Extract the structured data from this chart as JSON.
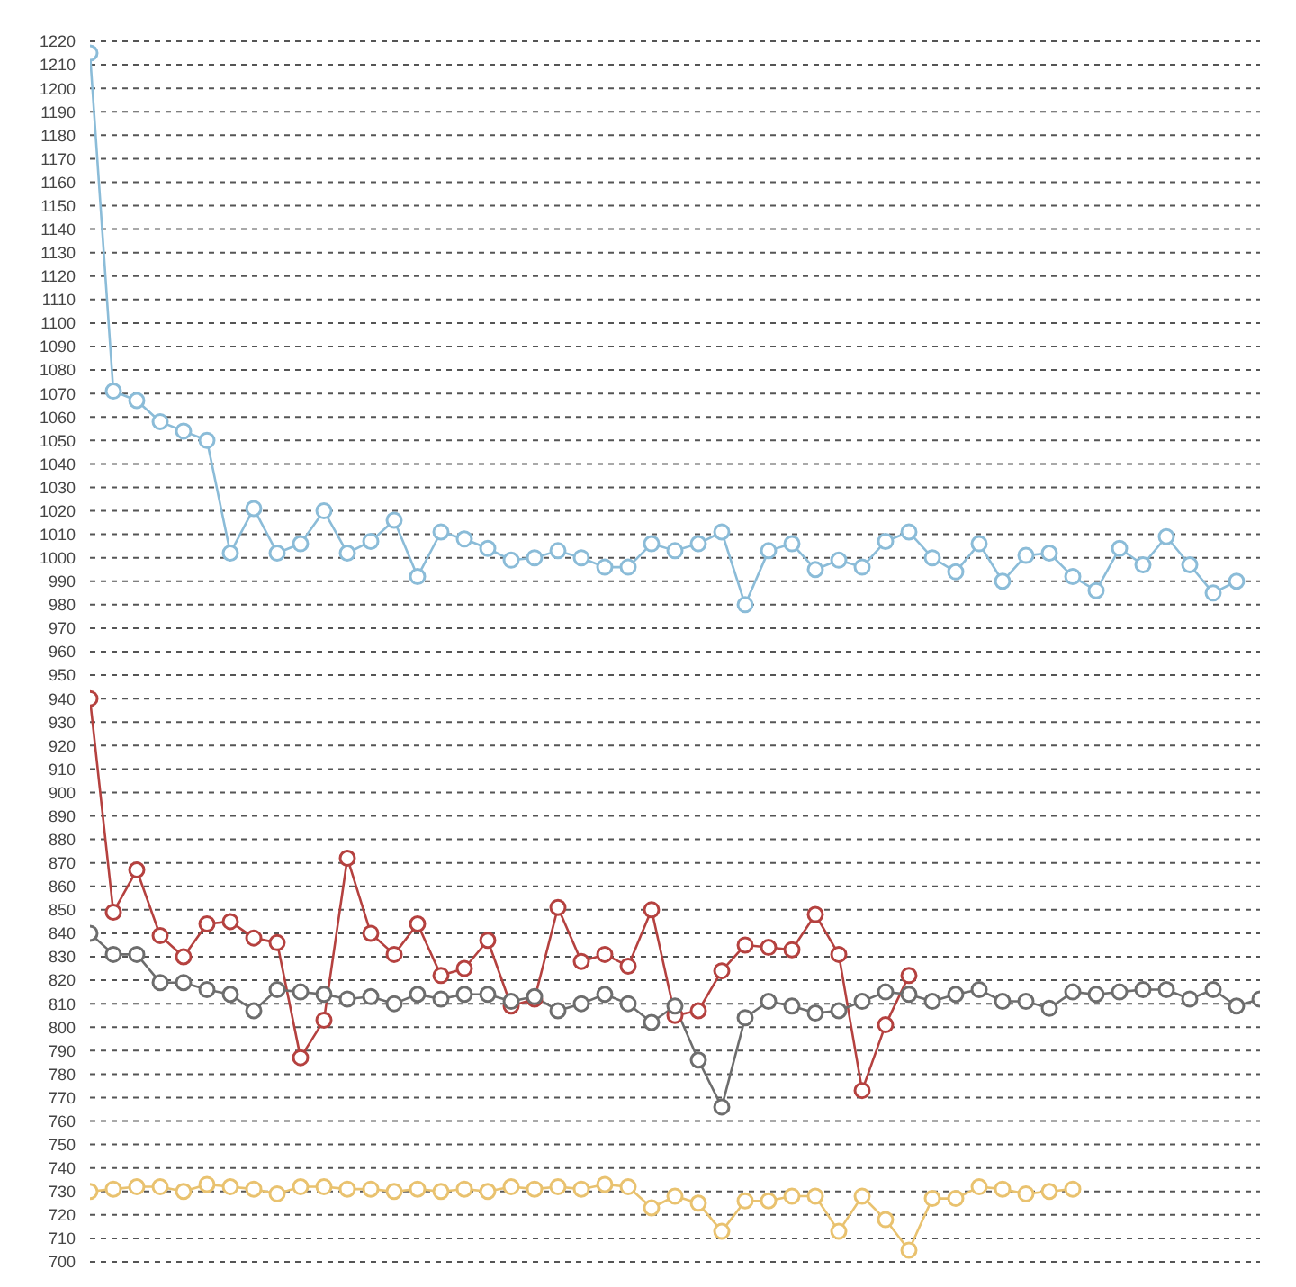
{
  "chart_data": {
    "type": "line",
    "categories": [
      null,
      null,
      null,
      null,
      null,
      null,
      null,
      null,
      null,
      null,
      null,
      null,
      null,
      null,
      null,
      null,
      null,
      null,
      null,
      null,
      null,
      null,
      null,
      null,
      null,
      null,
      null,
      null,
      null,
      null,
      null,
      null,
      null,
      null,
      null,
      null,
      null,
      null,
      null,
      null,
      null,
      null,
      null,
      null,
      null,
      null,
      null,
      null,
      null,
      null,
      null
    ],
    "series": [
      {
        "color": "#8bbcd8",
        "values": [
          1215,
          1071,
          1067,
          1058,
          1054,
          1050,
          1002,
          1021,
          1002,
          1006,
          1020,
          1002,
          1007,
          1016,
          992,
          1011,
          1008,
          1004,
          999,
          1000,
          1003,
          1000,
          996,
          996,
          1006,
          1003,
          1006,
          1011,
          980,
          1003,
          1006,
          995,
          999,
          996,
          1007,
          1011,
          1000,
          994,
          1006,
          990,
          1001,
          1002,
          992,
          986,
          1004,
          997,
          1009,
          997,
          985,
          990,
          null
        ]
      },
      {
        "color": "#b5413f",
        "values": [
          940,
          849,
          867,
          839,
          830,
          844,
          845,
          838,
          836,
          787,
          803,
          872,
          840,
          831,
          844,
          822,
          825,
          837,
          809,
          812,
          851,
          828,
          831,
          826,
          850,
          805,
          807,
          824,
          835,
          834,
          833,
          848,
          831,
          773,
          801,
          822,
          null,
          null,
          null,
          null,
          null,
          null,
          null,
          null,
          null,
          null,
          null,
          null,
          null,
          null,
          null
        ]
      },
      {
        "color": "#6d6d6d",
        "values": [
          840,
          831,
          831,
          819,
          819,
          816,
          814,
          807,
          816,
          815,
          814,
          812,
          813,
          810,
          814,
          812,
          814,
          814,
          811,
          813,
          807,
          810,
          814,
          810,
          802,
          809,
          786,
          766,
          804,
          811,
          809,
          806,
          807,
          811,
          815,
          814,
          811,
          814,
          816,
          811,
          811,
          808,
          815,
          814,
          815,
          816,
          816,
          812,
          816,
          809,
          812
        ]
      },
      {
        "color": "#e9c26f",
        "values": [
          730,
          731,
          732,
          732,
          730,
          733,
          732,
          731,
          729,
          732,
          732,
          731,
          731,
          730,
          731,
          730,
          731,
          730,
          732,
          731,
          732,
          731,
          733,
          732,
          723,
          728,
          725,
          713,
          726,
          726,
          728,
          728,
          713,
          728,
          718,
          705,
          727,
          727,
          732,
          731,
          729,
          730,
          731,
          null,
          null,
          null,
          null,
          null,
          null,
          null,
          null
        ]
      }
    ],
    "ylim": [
      700,
      1220
    ],
    "yticks": [
      700,
      710,
      720,
      730,
      740,
      750,
      760,
      770,
      780,
      790,
      800,
      810,
      820,
      830,
      840,
      850,
      860,
      870,
      880,
      890,
      900,
      910,
      920,
      930,
      940,
      950,
      960,
      970,
      980,
      990,
      1000,
      1010,
      1020,
      1030,
      1040,
      1050,
      1060,
      1070,
      1080,
      1090,
      1100,
      1110,
      1120,
      1130,
      1140,
      1150,
      1160,
      1170,
      1180,
      1190,
      1200,
      1210,
      1220
    ],
    "grid": "y",
    "tick_labels": "y",
    "marker": "circle",
    "line_style": "solid"
  }
}
